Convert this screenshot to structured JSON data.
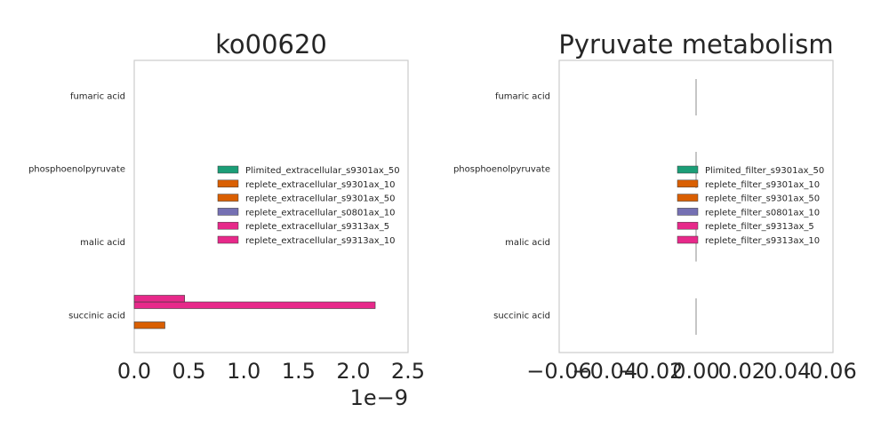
{
  "chart_data": [
    {
      "type": "bar",
      "orientation": "horizontal",
      "title": "ko00620",
      "categories": [
        "fumaric acid",
        "phosphoenolpyruvate",
        "malic acid",
        "succinic acid"
      ],
      "xlim": [
        0,
        2.5e-09
      ],
      "x_ticks": [
        0,
        5e-10,
        1e-09,
        1.5e-09,
        2e-09,
        2.5e-09
      ],
      "x_tick_labels": [
        "0.0",
        "0.5",
        "1.0",
        "1.5",
        "2.0",
        "2.5"
      ],
      "x_offset_label": "1e−9",
      "grid": false,
      "legend_position": "center-right",
      "series": [
        {
          "name": "Plimited_extracellular_s9301ax_50",
          "color": "#1b9e77",
          "values": [
            0,
            0,
            0,
            0
          ]
        },
        {
          "name": "replete_extracellular_s9301ax_10",
          "color": "#d95f02",
          "values": [
            0,
            0,
            0,
            2.8e-10
          ]
        },
        {
          "name": "replete_extracellular_s9301ax_50",
          "color": "#d95f02",
          "values": [
            0,
            0,
            0,
            0
          ]
        },
        {
          "name": "replete_extracellular_s0801ax_10",
          "color": "#7570b3",
          "values": [
            0,
            0,
            0,
            0
          ]
        },
        {
          "name": "replete_extracellular_s9313ax_5",
          "color": "#e7298a",
          "values": [
            0,
            0,
            0,
            2.2e-09
          ]
        },
        {
          "name": "replete_extracellular_s9313ax_10",
          "color": "#e7298a",
          "values": [
            0,
            0,
            0,
            4.6e-10
          ]
        }
      ]
    },
    {
      "type": "bar",
      "orientation": "horizontal",
      "title": "Pyruvate metabolism",
      "categories": [
        "fumaric acid",
        "phosphoenolpyruvate",
        "malic acid",
        "succinic acid"
      ],
      "xlim": [
        -0.06,
        0.06
      ],
      "x_ticks": [
        -0.06,
        -0.04,
        -0.02,
        0.0,
        0.02,
        0.04,
        0.06
      ],
      "x_tick_labels": [
        "−0.06",
        "−0.04",
        "−0.02",
        "0.00",
        "0.02",
        "0.04",
        "0.06"
      ],
      "grid": false,
      "legend_position": "center-right",
      "series": [
        {
          "name": "Plimited_filter_s9301ax_50",
          "color": "#1b9e77",
          "values": [
            0,
            0,
            0,
            0
          ]
        },
        {
          "name": "replete_filter_s9301ax_10",
          "color": "#d95f02",
          "values": [
            0,
            0,
            0,
            0
          ]
        },
        {
          "name": "replete_filter_s9301ax_50",
          "color": "#d95f02",
          "values": [
            0,
            0,
            0,
            0
          ]
        },
        {
          "name": "replete_filter_s0801ax_10",
          "color": "#7570b3",
          "values": [
            0,
            0,
            0,
            0
          ]
        },
        {
          "name": "replete_filter_s9313ax_5",
          "color": "#e7298a",
          "values": [
            0,
            0,
            0,
            0
          ]
        },
        {
          "name": "replete_filter_s9313ax_10",
          "color": "#e7298a",
          "values": [
            0,
            0,
            0,
            0
          ]
        }
      ]
    }
  ]
}
